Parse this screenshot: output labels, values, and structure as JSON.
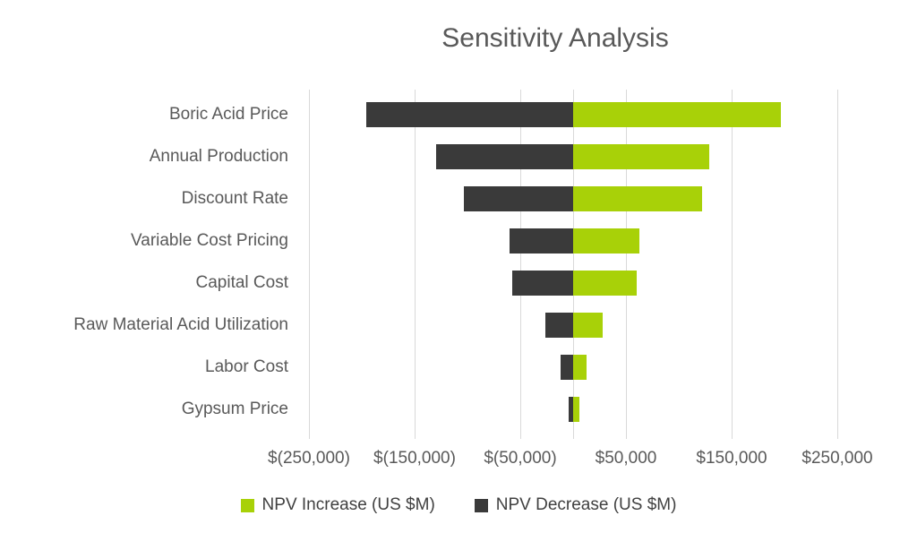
{
  "title": "Sensitivity Analysis",
  "colors": {
    "increase": "#a8d108",
    "decrease": "#3a3a3a",
    "gridline": "#d9d9d9",
    "text": "#595959"
  },
  "chart_data": {
    "type": "bar",
    "orientation": "horizontal",
    "subtype": "tornado",
    "title": "Sensitivity Analysis",
    "categories": [
      "Boric Acid Price",
      "Annual Production",
      "Discount Rate",
      "Variable Cost Pricing",
      "Capital Cost",
      "Raw Material Acid Utilization",
      "Labor Cost",
      "Gypsum Price"
    ],
    "series": [
      {
        "name": "NPV Increase (US $M)",
        "color": "#a8d108",
        "values": [
          197000,
          129000,
          122000,
          63000,
          60000,
          28000,
          13000,
          6000
        ]
      },
      {
        "name": "NPV Decrease (US $M)",
        "color": "#3a3a3a",
        "values": [
          -196000,
          -130000,
          -103000,
          -60000,
          -58000,
          -26000,
          -12000,
          -4000
        ]
      }
    ],
    "x_ticks": [
      "$(250,000)",
      "$(150,000)",
      "$(50,000)",
      "$50,000",
      "$150,000",
      "$250,000"
    ],
    "x_tick_values": [
      -250000,
      -150000,
      -50000,
      50000,
      150000,
      250000
    ],
    "xlim": [
      -250000,
      250000
    ],
    "zero_line": true,
    "grid": true,
    "legend_position": "bottom",
    "xlabel": "",
    "ylabel": ""
  },
  "legend": {
    "increase_label": "NPV Increase (US $M)",
    "decrease_label": "NPV Decrease (US $M)"
  }
}
